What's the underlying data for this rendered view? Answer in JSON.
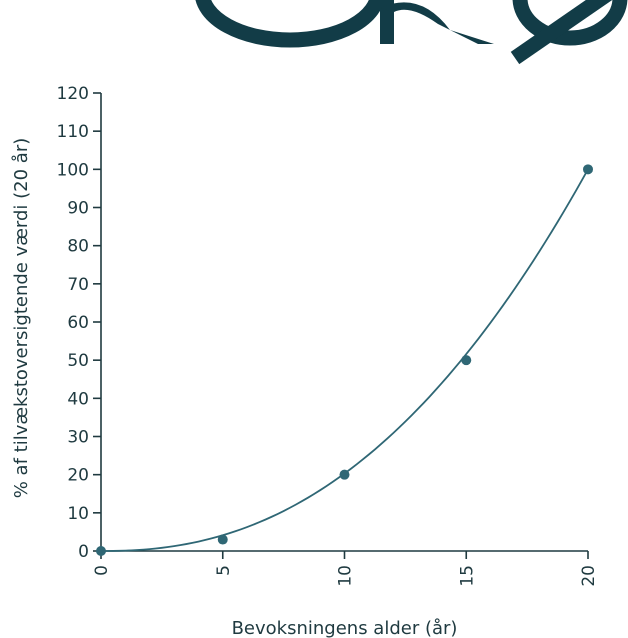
{
  "chart_data": {
    "type": "line",
    "title": "",
    "xlabel": "Bevoksningens alder (år)",
    "ylabel": "% af tilvækstoversigtende værdi (20 år)",
    "x": [
      0,
      5,
      10,
      15,
      20
    ],
    "series": [
      {
        "values": [
          0,
          3,
          20,
          50,
          100
        ]
      }
    ],
    "xlim": [
      0,
      20
    ],
    "ylim": [
      0,
      120
    ],
    "xticks": [
      "0",
      "5",
      "10",
      "15",
      "20"
    ],
    "yticks": [
      "0",
      "10",
      "20",
      "30",
      "40",
      "50",
      "60",
      "70",
      "80",
      "90",
      "100",
      "110",
      "120"
    ],
    "grid": false,
    "colors": {
      "series": "#2f6775",
      "axis": "#1f3a40",
      "logo": "#123c47"
    }
  }
}
